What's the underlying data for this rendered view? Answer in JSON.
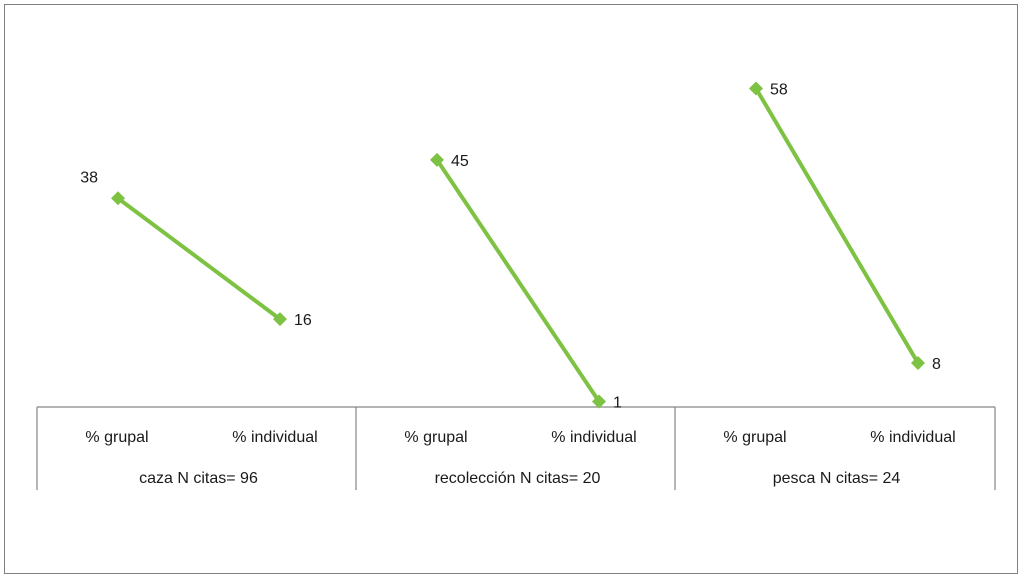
{
  "chart_data": {
    "type": "line",
    "ylim": [
      0,
      65
    ],
    "grid": false,
    "line_color": "#7dc242",
    "groups": [
      {
        "group_label": "caza N citas= 96",
        "categories": [
          "% grupal",
          "% individual"
        ],
        "values": [
          38,
          16
        ]
      },
      {
        "group_label": "recolección N citas= 20",
        "categories": [
          "% grupal",
          "% individual"
        ],
        "values": [
          45,
          1
        ]
      },
      {
        "group_label": "pesca N citas= 24",
        "categories": [
          "% grupal",
          "% individual"
        ],
        "values": [
          58,
          8
        ]
      }
    ]
  }
}
